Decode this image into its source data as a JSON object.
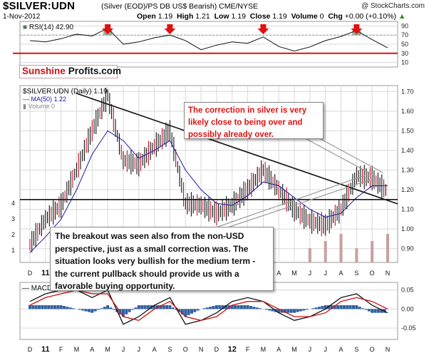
{
  "header": {
    "title": "$SILVER:UDN",
    "subtitle": "(Silver (EOD)/PS DB US$ Bearish) CME/NYSE",
    "copyright": "@ StockCharts.com",
    "date": "1-Nov-2012",
    "open_label": "Open",
    "open": "1.19",
    "high_label": "High",
    "high": "1.21",
    "low_label": "Low",
    "low": "1.19",
    "close_label": "Close",
    "close": "1.19",
    "volume_label": "Volume",
    "volume": "0",
    "chg_label": "Chg",
    "chg": "+0.00 (+0.10%)"
  },
  "brand": {
    "part1": "Sunshine",
    "part2": "Profits.com"
  },
  "rsi_panel": {
    "label": "RSI(14) 42.90"
  },
  "price_panel": {
    "label": "$SILVER:UDN (Daily) 1.19",
    "ma_label": "MA(50) 1.22",
    "volume_label": "Volume 0"
  },
  "macd_panel": {
    "label": "MACD"
  },
  "callouts": {
    "top": "The correction in silver is very likely close to being over and possibly already over.",
    "bottom": "The breakout was seen also from the non-USD perspective, just as a small correction was. The situation looks very bullish for the medium term - the current pullback should provide us with a favorable buying opportunity."
  },
  "colors": {
    "accent_red": "#e01010",
    "price_bars": "#111111",
    "down_bars": "#c0102a",
    "ma_line": "#1a1aa0",
    "macd_line": "#111111",
    "signal_line": "#d01010",
    "histogram": "#3060a0",
    "volume_bars": "#c8a0a0",
    "rsi_fill": "#557755",
    "background": "#ffffff",
    "grid": "#d8d8d8"
  },
  "chart_data": [
    {
      "type": "line",
      "title": "RSI(14) 42.90",
      "yticks": [
        90,
        70,
        50,
        30,
        10
      ],
      "ylim": [
        0,
        100
      ],
      "reference_levels": [
        30,
        70
      ],
      "support_level": 30,
      "x": [
        "D",
        "J",
        "F",
        "M",
        "A",
        "M",
        "J",
        "J",
        "A",
        "S",
        "O",
        "N",
        "D",
        "J",
        "F",
        "M",
        "A",
        "M",
        "J",
        "J",
        "A",
        "S",
        "O",
        "N"
      ],
      "values": [
        58,
        55,
        62,
        72,
        68,
        85,
        50,
        55,
        64,
        70,
        58,
        38,
        48,
        55,
        52,
        66,
        45,
        35,
        44,
        58,
        67,
        80,
        60,
        42
      ],
      "annotations": [
        "down arrows at overbought RSI readings"
      ]
    },
    {
      "type": "line",
      "title": "$SILVER:UDN (Daily) 1.19",
      "x": [
        "D",
        "11",
        "F",
        "M",
        "A",
        "M",
        "J",
        "J",
        "A",
        "S",
        "O",
        "N",
        "D",
        "12",
        "F",
        "M",
        "A",
        "M",
        "J",
        "J",
        "A",
        "S",
        "O",
        "N"
      ],
      "xlabel_year_markers": [
        "11",
        "12"
      ],
      "ylim": [
        0.83,
        1.73
      ],
      "yticks": [
        1.7,
        1.6,
        1.5,
        1.4,
        1.3,
        1.2,
        1.1,
        1.0,
        0.9
      ],
      "series": [
        {
          "name": "$SILVER:UDN",
          "values": [
            0.92,
            1.05,
            1.12,
            1.3,
            1.5,
            1.68,
            1.35,
            1.33,
            1.42,
            1.5,
            1.13,
            1.12,
            1.08,
            1.12,
            1.2,
            1.3,
            1.2,
            1.1,
            1.04,
            1.02,
            1.1,
            1.27,
            1.26,
            1.19
          ]
        },
        {
          "name": "MA(50) 1.22",
          "values": [
            0.88,
            0.96,
            1.05,
            1.2,
            1.38,
            1.5,
            1.45,
            1.36,
            1.4,
            1.45,
            1.3,
            1.2,
            1.13,
            1.12,
            1.17,
            1.24,
            1.22,
            1.16,
            1.1,
            1.06,
            1.08,
            1.16,
            1.22,
            1.22
          ]
        }
      ],
      "volume_axis": {
        "yticks": [
          4,
          3,
          2,
          1
        ]
      },
      "trendlines": [
        {
          "kind": "declining resistance",
          "from": [
            "M",
            1.69
          ],
          "to": [
            "N",
            1.15
          ]
        },
        {
          "kind": "horizontal support",
          "value": 1.15
        }
      ]
    },
    {
      "type": "line",
      "title": "MACD",
      "x": [
        "D",
        "11",
        "F",
        "M",
        "A",
        "M",
        "J",
        "J",
        "A",
        "S",
        "O",
        "N",
        "D",
        "12",
        "F",
        "M",
        "A",
        "M",
        "J",
        "J",
        "A",
        "S",
        "O",
        "N"
      ],
      "yticks": [
        0.05,
        0.0,
        -0.05
      ],
      "ylim": [
        -0.08,
        0.07
      ],
      "series": [
        {
          "name": "MACD",
          "values": [
            0.02,
            0.04,
            0.05,
            0.05,
            0.03,
            0.05,
            -0.04,
            -0.02,
            0.01,
            0.03,
            -0.04,
            -0.03,
            -0.01,
            0.02,
            0.03,
            0.02,
            -0.01,
            -0.03,
            -0.02,
            0.0,
            0.03,
            0.04,
            0.01,
            -0.01
          ]
        },
        {
          "name": "Signal",
          "values": [
            0.01,
            0.03,
            0.04,
            0.05,
            0.04,
            0.04,
            -0.02,
            -0.03,
            0.0,
            0.02,
            -0.02,
            -0.03,
            -0.02,
            0.01,
            0.02,
            0.02,
            0.0,
            -0.02,
            -0.02,
            -0.01,
            0.02,
            0.03,
            0.02,
            0.0
          ]
        }
      ]
    }
  ]
}
